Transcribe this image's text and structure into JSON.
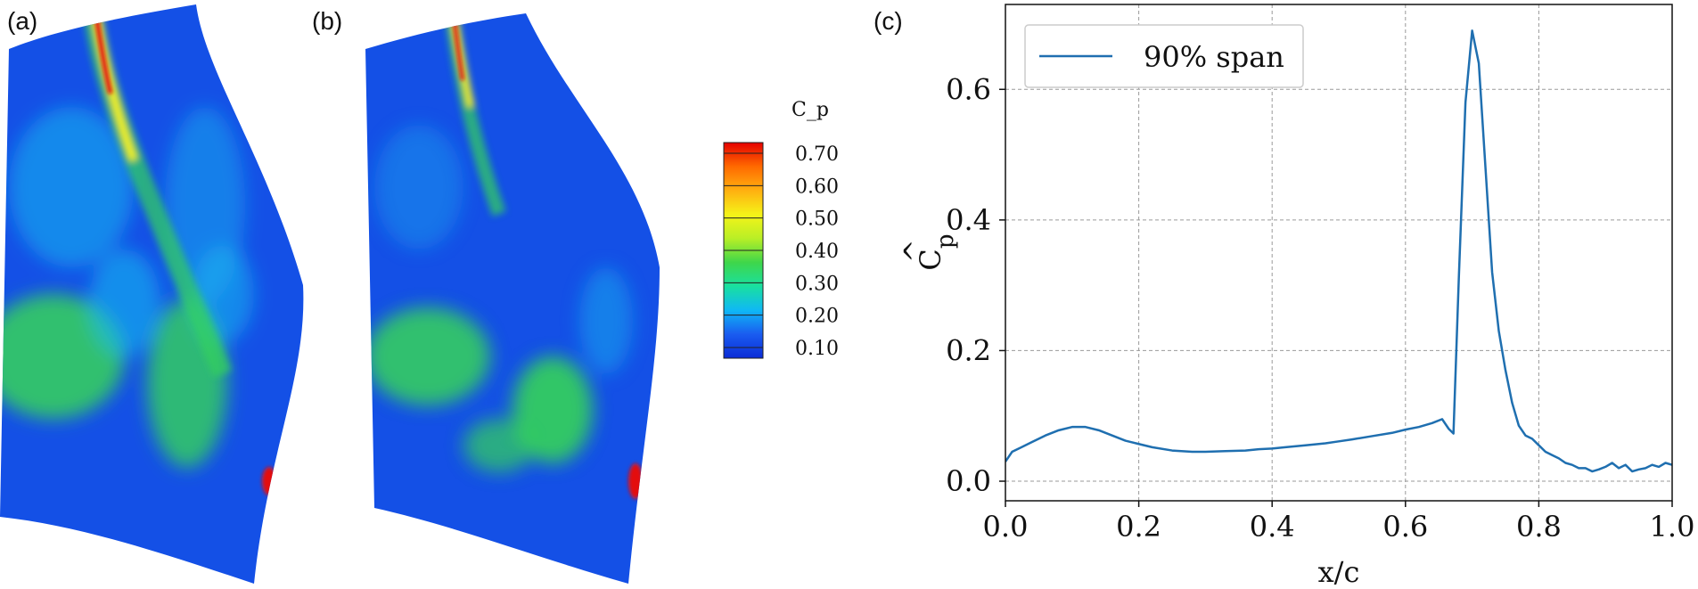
{
  "panels": {
    "a": {
      "label": "(a)"
    },
    "b": {
      "label": "(b)"
    },
    "c": {
      "label": "(c)"
    }
  },
  "colorbar": {
    "title": "C_p",
    "levels": [
      "0.70",
      "0.60",
      "0.50",
      "0.40",
      "0.30",
      "0.20",
      "0.10"
    ],
    "colormap": [
      "#0a2bd6",
      "#1a5cf0",
      "#0fb8f5",
      "#19e0a0",
      "#3fd64a",
      "#b9ef26",
      "#f5f318",
      "#ffb010",
      "#ff6a00",
      "#e60000"
    ]
  },
  "contour_colors": {
    "background": "#1450e6",
    "cyan": "#18b8f0",
    "green": "#35d35a",
    "red": "#e41010",
    "yellow": "#f4f020"
  },
  "chart_data": {
    "type": "line",
    "title": "",
    "xlabel": "x/c",
    "ylabel_main": "C",
    "ylabel_sub": "p",
    "ylabel_hat": "^",
    "xlim": [
      0.0,
      1.0
    ],
    "ylim": [
      -0.03,
      0.73
    ],
    "xticks": [
      "0.0",
      "0.2",
      "0.4",
      "0.6",
      "0.8",
      "1.0"
    ],
    "yticks": [
      "0.0",
      "0.2",
      "0.4",
      "0.6"
    ],
    "grid": true,
    "legend_position": "top-left",
    "series": [
      {
        "name": "90% span",
        "color": "#1f6fb0",
        "x": [
          0.0,
          0.01,
          0.02,
          0.04,
          0.06,
          0.08,
          0.1,
          0.12,
          0.14,
          0.16,
          0.18,
          0.2,
          0.22,
          0.25,
          0.28,
          0.3,
          0.33,
          0.36,
          0.38,
          0.4,
          0.42,
          0.45,
          0.48,
          0.5,
          0.52,
          0.55,
          0.58,
          0.6,
          0.62,
          0.64,
          0.655,
          0.665,
          0.672,
          0.68,
          0.69,
          0.7,
          0.71,
          0.72,
          0.73,
          0.74,
          0.75,
          0.76,
          0.77,
          0.78,
          0.79,
          0.8,
          0.81,
          0.82,
          0.83,
          0.84,
          0.85,
          0.86,
          0.87,
          0.88,
          0.89,
          0.9,
          0.91,
          0.92,
          0.93,
          0.94,
          0.95,
          0.96,
          0.97,
          0.98,
          0.99,
          1.0
        ],
        "values": [
          0.03,
          0.045,
          0.05,
          0.06,
          0.07,
          0.078,
          0.083,
          0.083,
          0.078,
          0.07,
          0.062,
          0.057,
          0.052,
          0.047,
          0.045,
          0.045,
          0.046,
          0.047,
          0.049,
          0.05,
          0.052,
          0.055,
          0.058,
          0.061,
          0.064,
          0.069,
          0.074,
          0.079,
          0.083,
          0.089,
          0.095,
          0.08,
          0.073,
          0.31,
          0.58,
          0.69,
          0.64,
          0.48,
          0.32,
          0.23,
          0.17,
          0.12,
          0.085,
          0.07,
          0.065,
          0.055,
          0.045,
          0.04,
          0.035,
          0.028,
          0.025,
          0.02,
          0.02,
          0.015,
          0.018,
          0.022,
          0.028,
          0.02,
          0.025,
          0.015,
          0.018,
          0.02,
          0.025,
          0.022,
          0.028,
          0.025
        ]
      }
    ]
  }
}
